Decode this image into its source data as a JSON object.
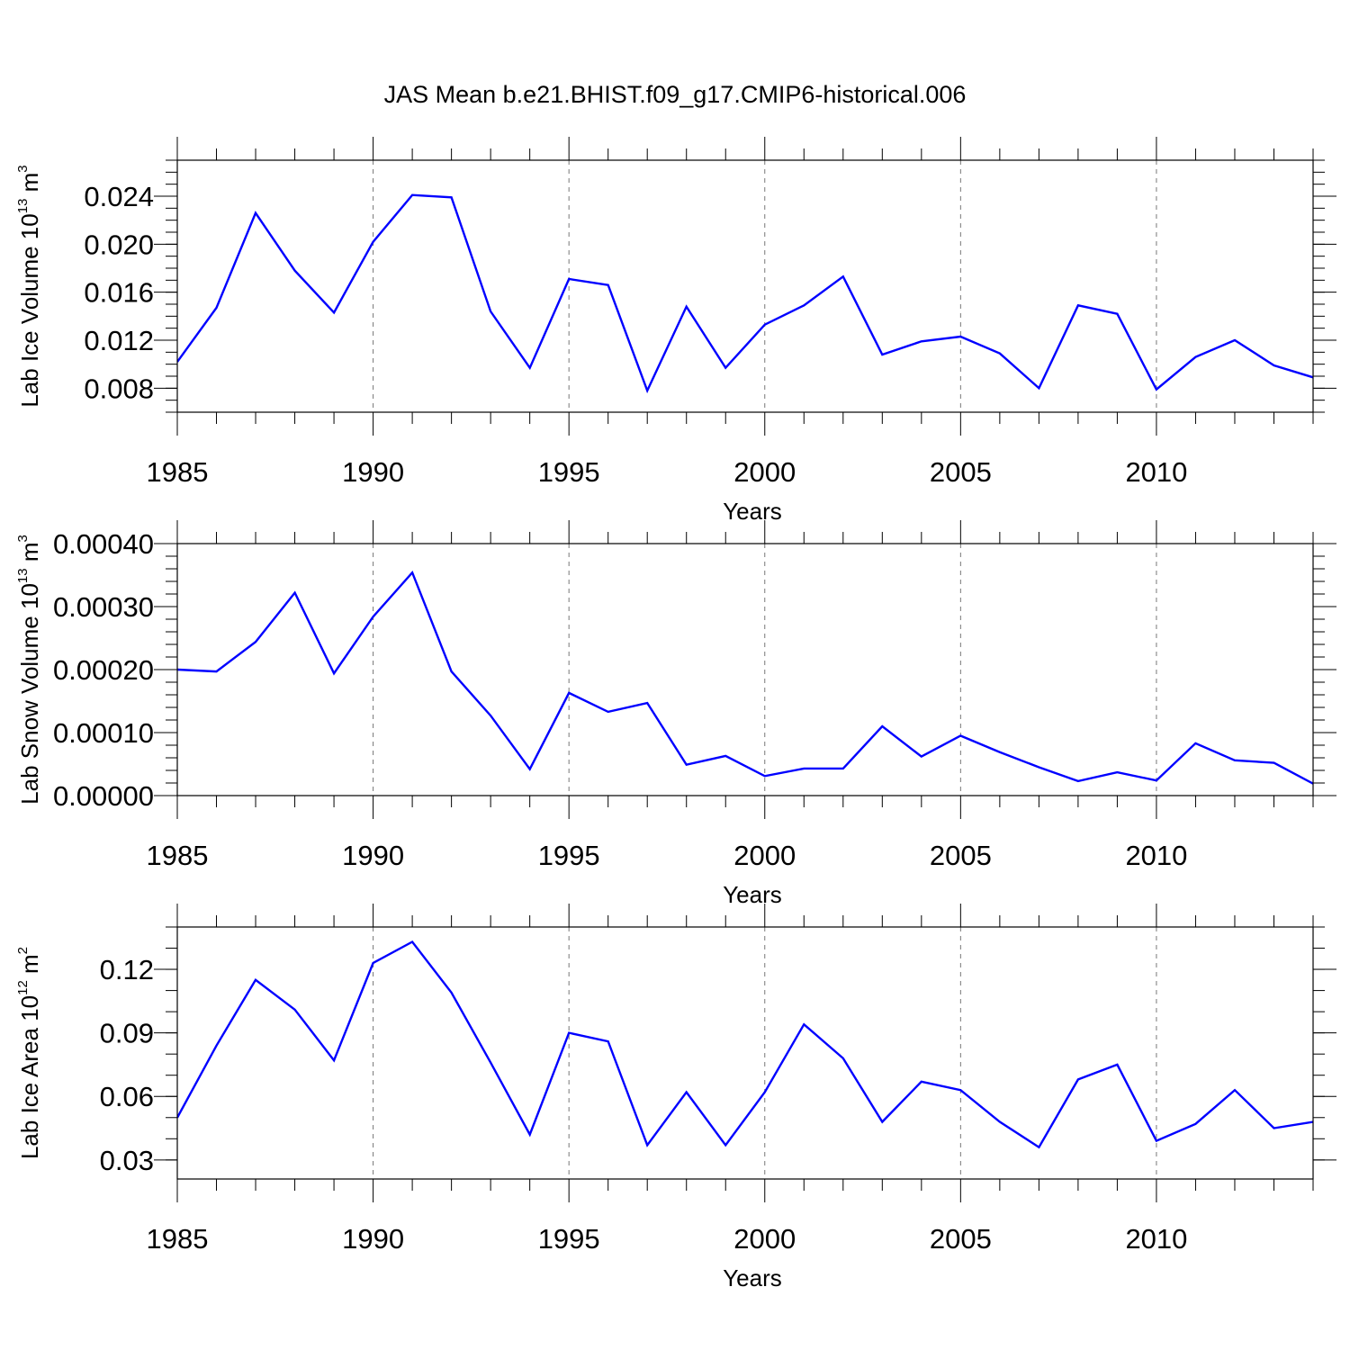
{
  "figure": {
    "title": "JAS Mean b.e21.BHIST.f09_g17.CMIP6-historical.006"
  },
  "chart_data": [
    {
      "type": "line",
      "xlabel": "Years",
      "ylabel_parts": [
        "Lab Ice Volume 10",
        "13",
        " m",
        "3"
      ],
      "xlim": [
        1985,
        2014
      ],
      "ylim": [
        0.006,
        0.027
      ],
      "x_ticks": [
        1985,
        1990,
        1995,
        2000,
        2005,
        2010
      ],
      "y_ticks": [
        "0.008",
        "0.012",
        "0.016",
        "0.020",
        "0.024"
      ],
      "y_minor_step": 0.001,
      "line_color": "#0000ff",
      "grid": "vertical dashed at major x ticks",
      "x": [
        1985,
        1986,
        1987,
        1988,
        1989,
        1990,
        1991,
        1992,
        1993,
        1994,
        1995,
        1996,
        1997,
        1998,
        1999,
        2000,
        2001,
        2002,
        2003,
        2004,
        2005,
        2006,
        2007,
        2008,
        2009,
        2010,
        2011,
        2012,
        2013,
        2014
      ],
      "values": [
        0.0102,
        0.0147,
        0.0226,
        0.0178,
        0.0143,
        0.0202,
        0.0241,
        0.0239,
        0.0144,
        0.0097,
        0.0171,
        0.0166,
        0.0078,
        0.0148,
        0.0097,
        0.0133,
        0.0149,
        0.0173,
        0.0108,
        0.0119,
        0.0123,
        0.0109,
        0.008,
        0.0149,
        0.0142,
        0.0079,
        0.0106,
        0.012,
        0.0099,
        0.0089
      ]
    },
    {
      "type": "line",
      "xlabel": "Years",
      "ylabel_parts": [
        "Lab Snow Volume 10",
        "13",
        " m",
        "3"
      ],
      "xlim": [
        1985,
        2014
      ],
      "ylim": [
        0.0,
        0.0004
      ],
      "x_ticks": [
        1985,
        1990,
        1995,
        2000,
        2005,
        2010
      ],
      "y_ticks": [
        "0.00000",
        "0.00010",
        "0.00020",
        "0.00030",
        "0.00040"
      ],
      "y_minor_step": 2e-05,
      "line_color": "#0000ff",
      "grid": "vertical dashed at major x ticks",
      "x": [
        1985,
        1986,
        1987,
        1988,
        1989,
        1990,
        1991,
        1992,
        1993,
        1994,
        1995,
        1996,
        1997,
        1998,
        1999,
        2000,
        2001,
        2002,
        2003,
        2004,
        2005,
        2006,
        2007,
        2008,
        2009,
        2010,
        2011,
        2012,
        2013,
        2014
      ],
      "values": [
        0.0002,
        0.000197,
        0.000244,
        0.000322,
        0.000194,
        0.000284,
        0.000354,
        0.000197,
        0.000127,
        4.2e-05,
        0.000163,
        0.000133,
        0.000147,
        4.9e-05,
        6.3e-05,
        3.1e-05,
        4.3e-05,
        4.3e-05,
        0.00011,
        6.2e-05,
        9.5e-05,
        6.9e-05,
        4.5e-05,
        2.3e-05,
        3.7e-05,
        2.4e-05,
        8.3e-05,
        5.6e-05,
        5.2e-05,
        1.9e-05
      ]
    },
    {
      "type": "line",
      "xlabel": "Years",
      "ylabel_parts": [
        "Lab Ice Area 10",
        "12",
        " m",
        "2"
      ],
      "xlim": [
        1985,
        2014
      ],
      "ylim": [
        0.021,
        0.14
      ],
      "x_ticks": [
        1985,
        1990,
        1995,
        2000,
        2005,
        2010
      ],
      "y_ticks": [
        "0.03",
        "0.06",
        "0.09",
        "0.12"
      ],
      "y_minor_step": 0.01,
      "line_color": "#0000ff",
      "grid": "vertical dashed at major x ticks",
      "x": [
        1985,
        1986,
        1987,
        1988,
        1989,
        1990,
        1991,
        1992,
        1993,
        1994,
        1995,
        1996,
        1997,
        1998,
        1999,
        2000,
        2001,
        2002,
        2003,
        2004,
        2005,
        2006,
        2007,
        2008,
        2009,
        2010,
        2011,
        2012,
        2013,
        2014
      ],
      "values": [
        0.05,
        0.084,
        0.115,
        0.101,
        0.077,
        0.123,
        0.133,
        0.109,
        0.076,
        0.042,
        0.09,
        0.086,
        0.037,
        0.062,
        0.037,
        0.062,
        0.094,
        0.078,
        0.048,
        0.067,
        0.063,
        0.048,
        0.036,
        0.068,
        0.075,
        0.039,
        0.047,
        0.063,
        0.045,
        0.048
      ]
    }
  ]
}
